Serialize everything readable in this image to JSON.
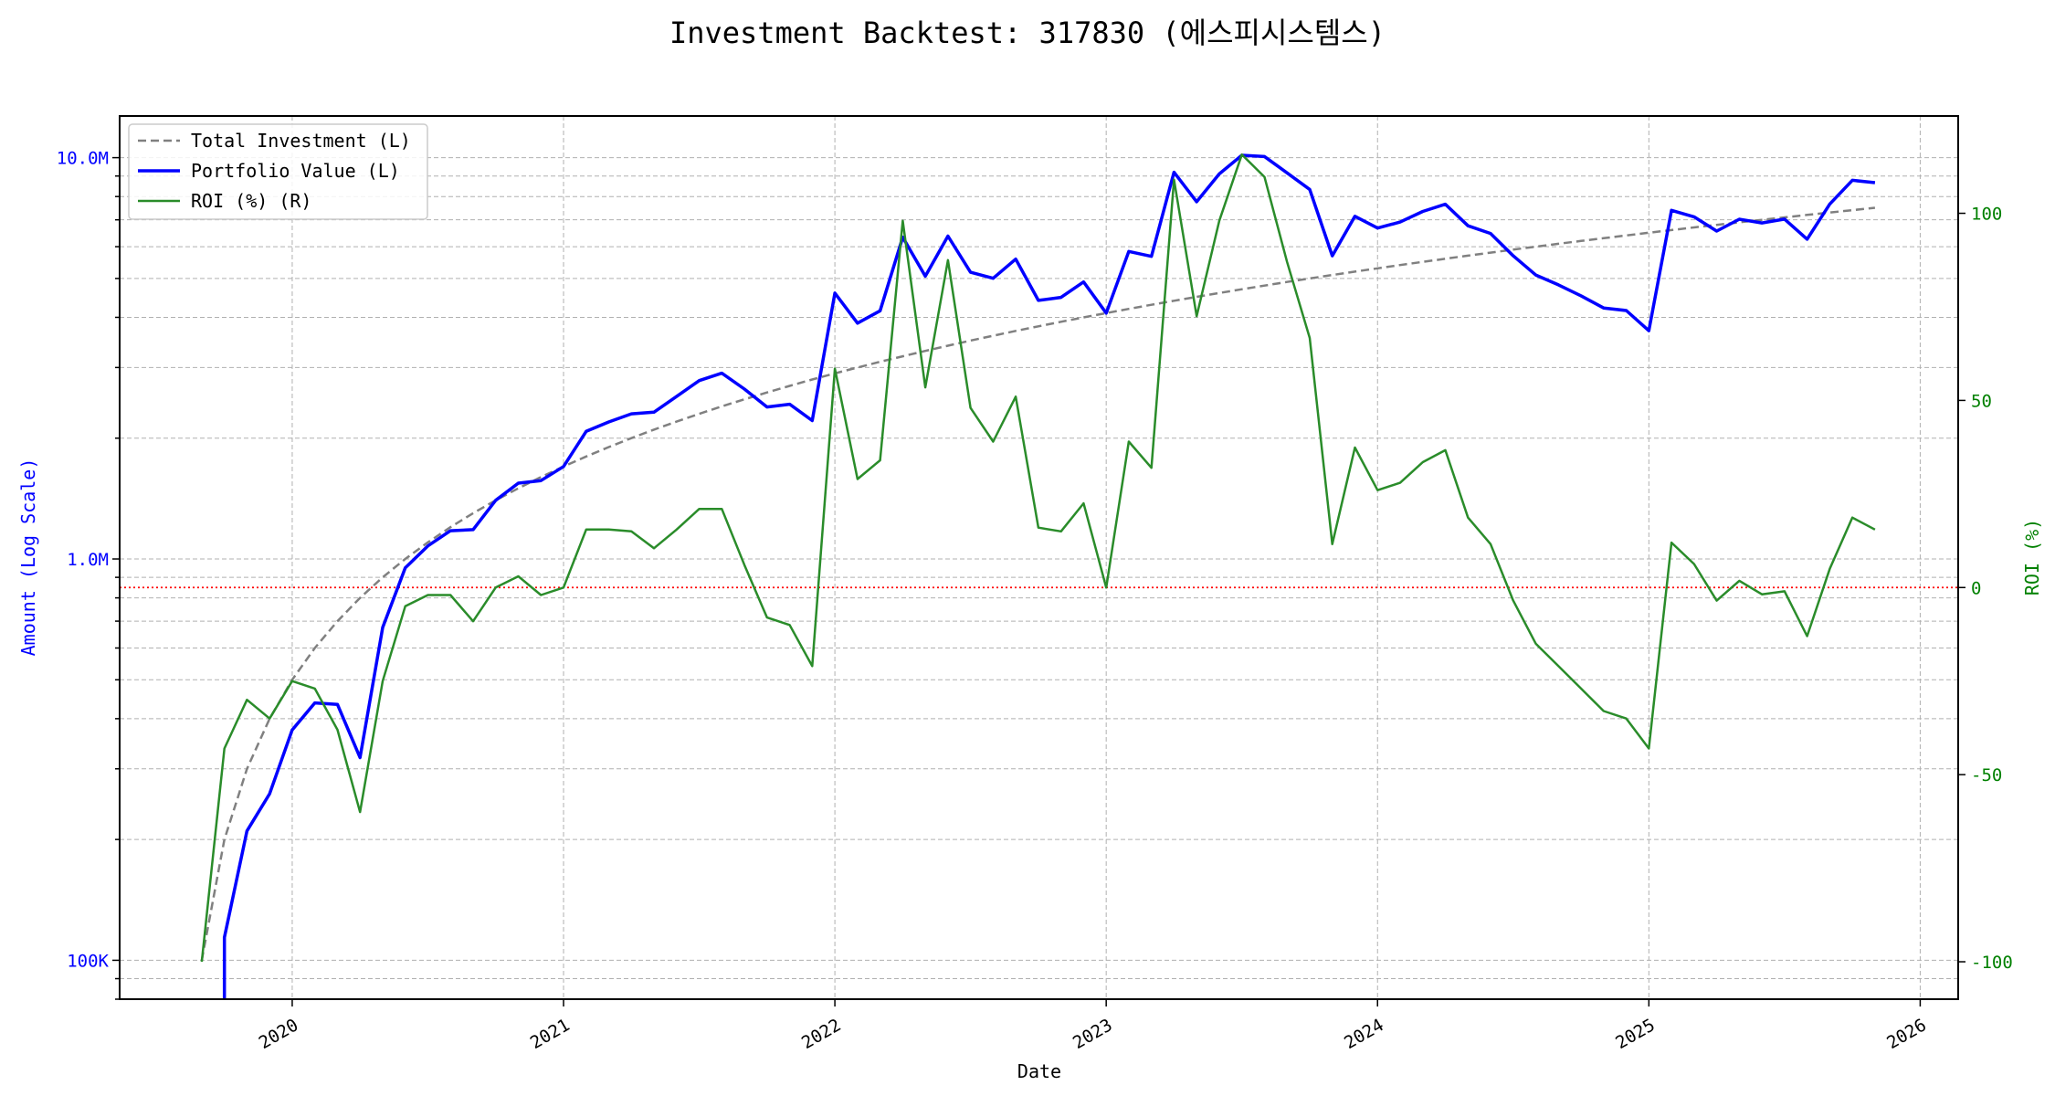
{
  "chart_data": {
    "type": "line",
    "title": "Investment Backtest: 317830 (에스피시스템스)",
    "xlabel": "Date",
    "ylabel_left": "Amount (Log Scale)",
    "ylabel_right": "ROI (%)",
    "x_ticks": [
      "2020",
      "2021",
      "2022",
      "2023",
      "2024",
      "2025",
      "2026"
    ],
    "y_left_ticks": [
      "100K",
      "1.0M",
      "10.0M"
    ],
    "y_left_scale": "log",
    "y_left_range": [
      80000,
      12700000
    ],
    "y_right_ticks": [
      "-100",
      "-50",
      "0",
      "50",
      "100"
    ],
    "y_right_range": [
      -110,
      126
    ],
    "grid": true,
    "legend": "top-left",
    "reference_line": {
      "axis": "right",
      "value": 0,
      "color": "#ff0000",
      "style": "dotted"
    },
    "colors": {
      "investment": "#808080",
      "portfolio": "#0000ff",
      "roi": "#2a8c2a",
      "left_axis": "#0000ff",
      "right_axis": "#008000"
    },
    "dates": [
      "2019-09",
      "2019-10",
      "2019-11",
      "2019-12",
      "2020-01",
      "2020-02",
      "2020-03",
      "2020-04",
      "2020-05",
      "2020-06",
      "2020-07",
      "2020-08",
      "2020-09",
      "2020-10",
      "2020-11",
      "2020-12",
      "2021-01",
      "2021-02",
      "2021-03",
      "2021-04",
      "2021-05",
      "2021-06",
      "2021-07",
      "2021-08",
      "2021-09",
      "2021-10",
      "2021-11",
      "2021-12",
      "2022-01",
      "2022-02",
      "2022-03",
      "2022-04",
      "2022-05",
      "2022-06",
      "2022-07",
      "2022-08",
      "2022-09",
      "2022-10",
      "2022-11",
      "2022-12",
      "2023-01",
      "2023-02",
      "2023-03",
      "2023-04",
      "2023-05",
      "2023-06",
      "2023-07",
      "2023-08",
      "2023-09",
      "2023-10",
      "2023-11",
      "2023-12",
      "2024-01",
      "2024-02",
      "2024-03",
      "2024-04",
      "2024-05",
      "2024-06",
      "2024-07",
      "2024-08",
      "2024-09",
      "2024-10",
      "2024-11",
      "2024-12",
      "2025-01",
      "2025-02",
      "2025-03",
      "2025-04",
      "2025-05",
      "2025-06",
      "2025-07",
      "2025-08",
      "2025-09",
      "2025-10",
      "2025-11"
    ],
    "series": [
      {
        "name": "Total Investment (L)",
        "axis": "left",
        "style": "dashed",
        "values": [
          100000,
          200000,
          300000,
          400000,
          500000,
          600000,
          700000,
          800000,
          900000,
          1000000,
          1100000,
          1200000,
          1300000,
          1400000,
          1500000,
          1600000,
          1700000,
          1800000,
          1900000,
          2000000,
          2100000,
          2200000,
          2300000,
          2400000,
          2500000,
          2600000,
          2700000,
          2800000,
          2900000,
          3000000,
          3100000,
          3200000,
          3300000,
          3400000,
          3500000,
          3600000,
          3700000,
          3800000,
          3900000,
          4000000,
          4100000,
          4200000,
          4300000,
          4400000,
          4500000,
          4600000,
          4700000,
          4800000,
          4900000,
          5000000,
          5100000,
          5200000,
          5300000,
          5400000,
          5500000,
          5600000,
          5700000,
          5800000,
          5900000,
          6000000,
          6100000,
          6200000,
          6300000,
          6400000,
          6500000,
          6600000,
          6700000,
          6800000,
          6900000,
          7000000,
          7100000,
          7200000,
          7300000,
          7400000,
          7500000
        ]
      },
      {
        "name": "Portfolio Value (L)",
        "axis": "left",
        "style": "solid",
        "values": [
          0,
          114000,
          210000,
          260000,
          375000,
          438000,
          434000,
          320000,
          675000,
          950000,
          1078000,
          1176000,
          1183000,
          1400000,
          1545000,
          1568000,
          1700000,
          2079000,
          2195000,
          2300000,
          2321000,
          2541000,
          2783000,
          2904000,
          2650000,
          2392000,
          2430000,
          2212000,
          4597000,
          3870000,
          4154000,
          6336000,
          5066000,
          6375000,
          5180000,
          5004000,
          5587000,
          4408000,
          4485000,
          4900000,
          4100000,
          5838000,
          5676000,
          9196000,
          7763000,
          9108000,
          10138000,
          10066000,
          9163000,
          8335000,
          5692000,
          7145000,
          6678000,
          6912000,
          7343000,
          7655000,
          6766000,
          6473000,
          5694000,
          5100000,
          4819000,
          4526000,
          4221000,
          4160000,
          3705000,
          7392000,
          7122000,
          6562000,
          7024000,
          6874000,
          7029000,
          6264000,
          7665000,
          8784000,
          8663000
        ]
      },
      {
        "name": "ROI (%) (R)",
        "axis": "right",
        "style": "solid",
        "values": [
          -100,
          -43,
          -30,
          -35,
          -25,
          -27,
          -38,
          -60,
          -25,
          -5,
          -2,
          -2,
          -9,
          0,
          3,
          -2,
          0,
          15.5,
          15.5,
          15,
          10.5,
          15.5,
          21,
          21,
          6,
          -8,
          -10,
          -21,
          58.5,
          29,
          34,
          98,
          53.5,
          87.5,
          48,
          39,
          51,
          16,
          15,
          22.5,
          0,
          39,
          32,
          109,
          72.5,
          98,
          115.7,
          109.7,
          87,
          66.7,
          11.6,
          37.4,
          26,
          28,
          33.5,
          36.7,
          18.7,
          11.6,
          -3.5,
          -15,
          -21,
          -27,
          -33,
          -35,
          -43,
          12,
          6.3,
          -3.5,
          1.8,
          -1.8,
          -1,
          -13,
          5,
          18.7,
          15.5
        ]
      }
    ]
  }
}
